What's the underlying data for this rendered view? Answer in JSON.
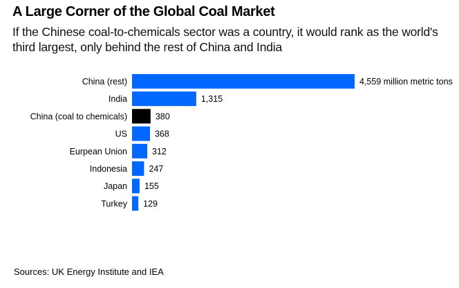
{
  "chart_data": {
    "type": "bar",
    "orientation": "horizontal",
    "title": "A Large Corner of the Global Coal Market",
    "subtitle": "If the Chinese coal-to-chemicals sector was a country, it would rank as the world's third largest, only behind the rest of China and India",
    "categories": [
      "China (rest)",
      "India",
      "China (coal to chemicals)",
      "US",
      "Eurpean Union",
      "Indonesia",
      "Japan",
      "Turkey"
    ],
    "values": [
      4559,
      1315,
      380,
      368,
      312,
      247,
      155,
      129
    ],
    "value_labels": [
      "4,559 million metric tons",
      "1,315",
      "380",
      "368",
      "312",
      "247",
      "155",
      "129"
    ],
    "highlight_category": "China (coal to chemicals)",
    "colors": {
      "default": "#0068ff",
      "highlight": "#000000"
    },
    "unit": "million metric tons",
    "xlabel": "",
    "ylabel": "",
    "grid": false,
    "legend": "none",
    "source": "Sources: UK Energy Institute and IEA"
  }
}
